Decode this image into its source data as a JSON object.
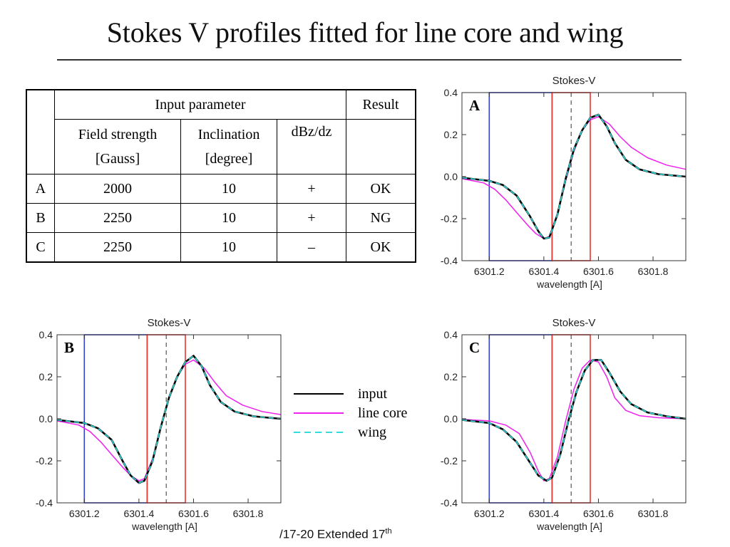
{
  "title": "Stokes V profiles fitted for line core and wing",
  "table": {
    "group_input": "Input parameter",
    "group_result": "Result",
    "col_field_1": "Field strength",
    "col_field_2": "[Gauss]",
    "col_incl_1": "Inclination",
    "col_incl_2": "[degree]",
    "col_dbz": "dBz/dz",
    "rows": [
      {
        "label": "A",
        "field": "2000",
        "incl": "10",
        "dbz": "+",
        "result": "OK"
      },
      {
        "label": "B",
        "field": "2250",
        "incl": "10",
        "dbz": "+",
        "result": "NG"
      },
      {
        "label": "C",
        "field": "2250",
        "incl": "10",
        "dbz": "–",
        "result": "OK"
      }
    ]
  },
  "legend": {
    "input": "input",
    "line_core": "line core",
    "wing": "wing"
  },
  "footer": {
    "text": "/17-20 Extended 17",
    "sup": "th"
  },
  "colors": {
    "input": "#000000",
    "line_core": "#ee22ee",
    "wing": "#33dddd",
    "blue_box": "#3344cc",
    "red_box": "#ee3333",
    "dashed_center": "#333333"
  },
  "chart_data": [
    {
      "type": "line",
      "panel": "A",
      "title": "Stokes-V",
      "xlabel": "wavelength [A]",
      "ylabel": "",
      "xlim": [
        6301.1,
        6301.92
      ],
      "ylim": [
        -0.4,
        0.4
      ],
      "xticks": [
        "6301.2",
        "6301.4",
        "6301.6",
        "6301.8"
      ],
      "yticks": [
        "0.4",
        "0.2",
        "0.0",
        "-0.2",
        "-0.4"
      ],
      "blue_box_x": [
        6301.2,
        6301.43
      ],
      "red_box_x": [
        6301.43,
        6301.57
      ],
      "center_x": 6301.5,
      "series": [
        {
          "name": "input",
          "x": [
            6301.1,
            6301.2,
            6301.25,
            6301.3,
            6301.35,
            6301.38,
            6301.4,
            6301.42,
            6301.45,
            6301.48,
            6301.51,
            6301.54,
            6301.57,
            6301.6,
            6301.63,
            6301.66,
            6301.7,
            6301.75,
            6301.82,
            6301.92
          ],
          "y": [
            -0.005,
            -0.02,
            -0.04,
            -0.09,
            -0.19,
            -0.26,
            -0.295,
            -0.29,
            -0.18,
            -0.01,
            0.13,
            0.22,
            0.28,
            0.295,
            0.24,
            0.16,
            0.08,
            0.035,
            0.012,
            0.0
          ]
        },
        {
          "name": "line core",
          "x": [
            6301.1,
            6301.18,
            6301.22,
            6301.26,
            6301.3,
            6301.34,
            6301.37,
            6301.4,
            6301.42,
            6301.45,
            6301.48,
            6301.51,
            6301.54,
            6301.57,
            6301.6,
            6301.64,
            6301.68,
            6301.72,
            6301.78,
            6301.85,
            6301.92
          ],
          "y": [
            -0.01,
            -0.03,
            -0.06,
            -0.11,
            -0.17,
            -0.23,
            -0.27,
            -0.295,
            -0.285,
            -0.18,
            -0.02,
            0.12,
            0.22,
            0.27,
            0.285,
            0.25,
            0.19,
            0.14,
            0.09,
            0.055,
            0.035
          ]
        },
        {
          "name": "wing",
          "x": [
            6301.1,
            6301.2,
            6301.25,
            6301.3,
            6301.35,
            6301.38,
            6301.4,
            6301.42,
            6301.45,
            6301.48,
            6301.51,
            6301.54,
            6301.57,
            6301.6,
            6301.63,
            6301.66,
            6301.7,
            6301.75,
            6301.82,
            6301.92
          ],
          "y": [
            -0.005,
            -0.02,
            -0.04,
            -0.09,
            -0.19,
            -0.26,
            -0.295,
            -0.29,
            -0.18,
            -0.01,
            0.13,
            0.22,
            0.28,
            0.295,
            0.24,
            0.16,
            0.08,
            0.035,
            0.012,
            0.0
          ]
        }
      ]
    },
    {
      "type": "line",
      "panel": "B",
      "title": "Stokes-V",
      "xlabel": "wavelength [A]",
      "ylabel": "",
      "xlim": [
        6301.1,
        6301.92
      ],
      "ylim": [
        -0.4,
        0.4
      ],
      "xticks": [
        "6301.2",
        "6301.4",
        "6301.6",
        "6301.8"
      ],
      "yticks": [
        "0.4",
        "0.2",
        "0.0",
        "-0.2",
        "-0.4"
      ],
      "blue_box_x": [
        6301.2,
        6301.43
      ],
      "red_box_x": [
        6301.43,
        6301.57
      ],
      "center_x": 6301.5,
      "series": [
        {
          "name": "input",
          "x": [
            6301.1,
            6301.2,
            6301.25,
            6301.3,
            6301.34,
            6301.37,
            6301.4,
            6301.42,
            6301.45,
            6301.48,
            6301.51,
            6301.54,
            6301.57,
            6301.6,
            6301.63,
            6301.66,
            6301.7,
            6301.75,
            6301.82,
            6301.92
          ],
          "y": [
            -0.005,
            -0.02,
            -0.045,
            -0.1,
            -0.2,
            -0.27,
            -0.305,
            -0.295,
            -0.2,
            -0.04,
            0.1,
            0.2,
            0.27,
            0.3,
            0.25,
            0.16,
            0.08,
            0.035,
            0.012,
            0.0
          ]
        },
        {
          "name": "line core",
          "x": [
            6301.1,
            6301.18,
            6301.22,
            6301.26,
            6301.3,
            6301.34,
            6301.37,
            6301.4,
            6301.42,
            6301.45,
            6301.48,
            6301.51,
            6301.54,
            6301.57,
            6301.6,
            6301.64,
            6301.68,
            6301.72,
            6301.78,
            6301.85,
            6301.92
          ],
          "y": [
            -0.01,
            -0.03,
            -0.06,
            -0.11,
            -0.17,
            -0.23,
            -0.27,
            -0.295,
            -0.285,
            -0.19,
            -0.04,
            0.1,
            0.2,
            0.26,
            0.28,
            0.24,
            0.17,
            0.11,
            0.065,
            0.035,
            0.02
          ]
        },
        {
          "name": "wing",
          "x": [
            6301.1,
            6301.2,
            6301.25,
            6301.3,
            6301.34,
            6301.37,
            6301.4,
            6301.42,
            6301.45,
            6301.48,
            6301.51,
            6301.54,
            6301.57,
            6301.6,
            6301.63,
            6301.66,
            6301.7,
            6301.75,
            6301.82,
            6301.92
          ],
          "y": [
            -0.005,
            -0.02,
            -0.045,
            -0.1,
            -0.2,
            -0.27,
            -0.305,
            -0.295,
            -0.2,
            -0.04,
            0.1,
            0.2,
            0.27,
            0.3,
            0.25,
            0.16,
            0.08,
            0.035,
            0.012,
            0.0
          ]
        }
      ]
    },
    {
      "type": "line",
      "panel": "C",
      "title": "Stokes-V",
      "xlabel": "wavelength [A]",
      "ylabel": "",
      "xlim": [
        6301.1,
        6301.92
      ],
      "ylim": [
        -0.4,
        0.4
      ],
      "xticks": [
        "6301.2",
        "6301.4",
        "6301.6",
        "6301.8"
      ],
      "yticks": [
        "0.4",
        "0.2",
        "0.0",
        "-0.2",
        "-0.4"
      ],
      "blue_box_x": [
        6301.2,
        6301.43
      ],
      "red_box_x": [
        6301.43,
        6301.57
      ],
      "center_x": 6301.5,
      "series": [
        {
          "name": "input",
          "x": [
            6301.1,
            6301.2,
            6301.25,
            6301.3,
            6301.35,
            6301.38,
            6301.41,
            6301.43,
            6301.46,
            6301.49,
            6301.52,
            6301.55,
            6301.58,
            6301.61,
            6301.64,
            6301.68,
            6301.72,
            6301.78,
            6301.85,
            6301.92
          ],
          "y": [
            -0.005,
            -0.02,
            -0.05,
            -0.11,
            -0.21,
            -0.27,
            -0.295,
            -0.28,
            -0.17,
            -0.01,
            0.13,
            0.23,
            0.28,
            0.28,
            0.22,
            0.13,
            0.07,
            0.03,
            0.012,
            0.0
          ]
        },
        {
          "name": "line core",
          "x": [
            6301.1,
            6301.2,
            6301.26,
            6301.31,
            6301.35,
            6301.38,
            6301.4,
            6301.42,
            6301.45,
            6301.48,
            6301.51,
            6301.54,
            6301.57,
            6301.6,
            6301.63,
            6301.66,
            6301.7,
            6301.75,
            6301.82,
            6301.92
          ],
          "y": [
            -0.003,
            -0.01,
            -0.03,
            -0.07,
            -0.16,
            -0.25,
            -0.295,
            -0.285,
            -0.18,
            -0.01,
            0.14,
            0.24,
            0.28,
            0.27,
            0.2,
            0.1,
            0.04,
            0.015,
            0.005,
            0.0
          ]
        },
        {
          "name": "wing",
          "x": [
            6301.1,
            6301.2,
            6301.25,
            6301.3,
            6301.35,
            6301.38,
            6301.41,
            6301.43,
            6301.46,
            6301.49,
            6301.52,
            6301.55,
            6301.58,
            6301.61,
            6301.64,
            6301.68,
            6301.72,
            6301.78,
            6301.85,
            6301.92
          ],
          "y": [
            -0.005,
            -0.02,
            -0.05,
            -0.11,
            -0.21,
            -0.27,
            -0.295,
            -0.28,
            -0.17,
            -0.01,
            0.13,
            0.23,
            0.28,
            0.28,
            0.22,
            0.13,
            0.07,
            0.03,
            0.012,
            0.0
          ]
        }
      ]
    }
  ]
}
